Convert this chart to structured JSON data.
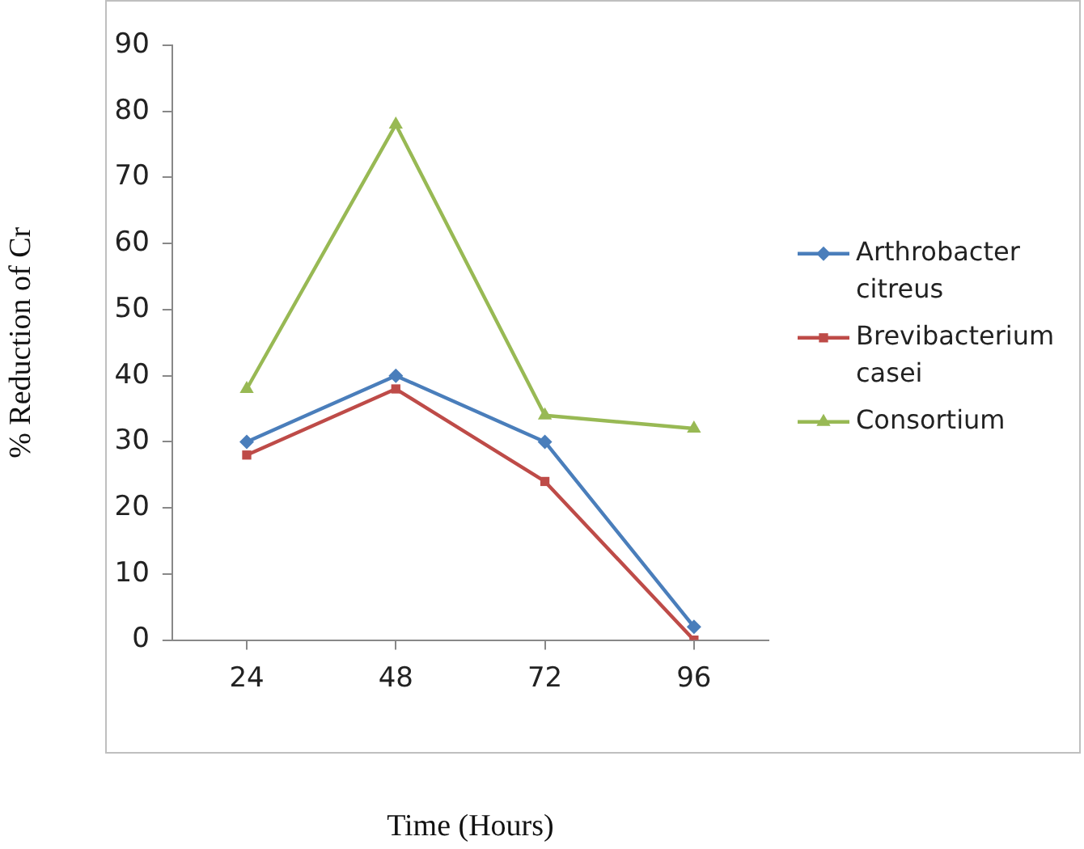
{
  "chart_data": {
    "type": "line",
    "xlabel": "Time (Hours)",
    "ylabel": "% Reduction of Cr",
    "categories": [
      "24",
      "48",
      "72",
      "96"
    ],
    "ylim": [
      0,
      90
    ],
    "yticks": [
      0,
      10,
      20,
      30,
      40,
      50,
      60,
      70,
      80,
      90
    ],
    "grid": false,
    "legend": "right",
    "line_style": "solid",
    "series": [
      {
        "name": "Arthrobacter citreus",
        "color": "#4a7ebb",
        "marker": "diamond",
        "values": [
          30,
          40,
          30,
          2
        ]
      },
      {
        "name": "Brevibacterium casei",
        "color": "#be4b48",
        "marker": "square",
        "values": [
          28,
          38,
          24,
          0
        ]
      },
      {
        "name": "Consortium",
        "color": "#98b954",
        "marker": "triangle",
        "values": [
          38,
          78,
          34,
          32
        ]
      }
    ]
  }
}
